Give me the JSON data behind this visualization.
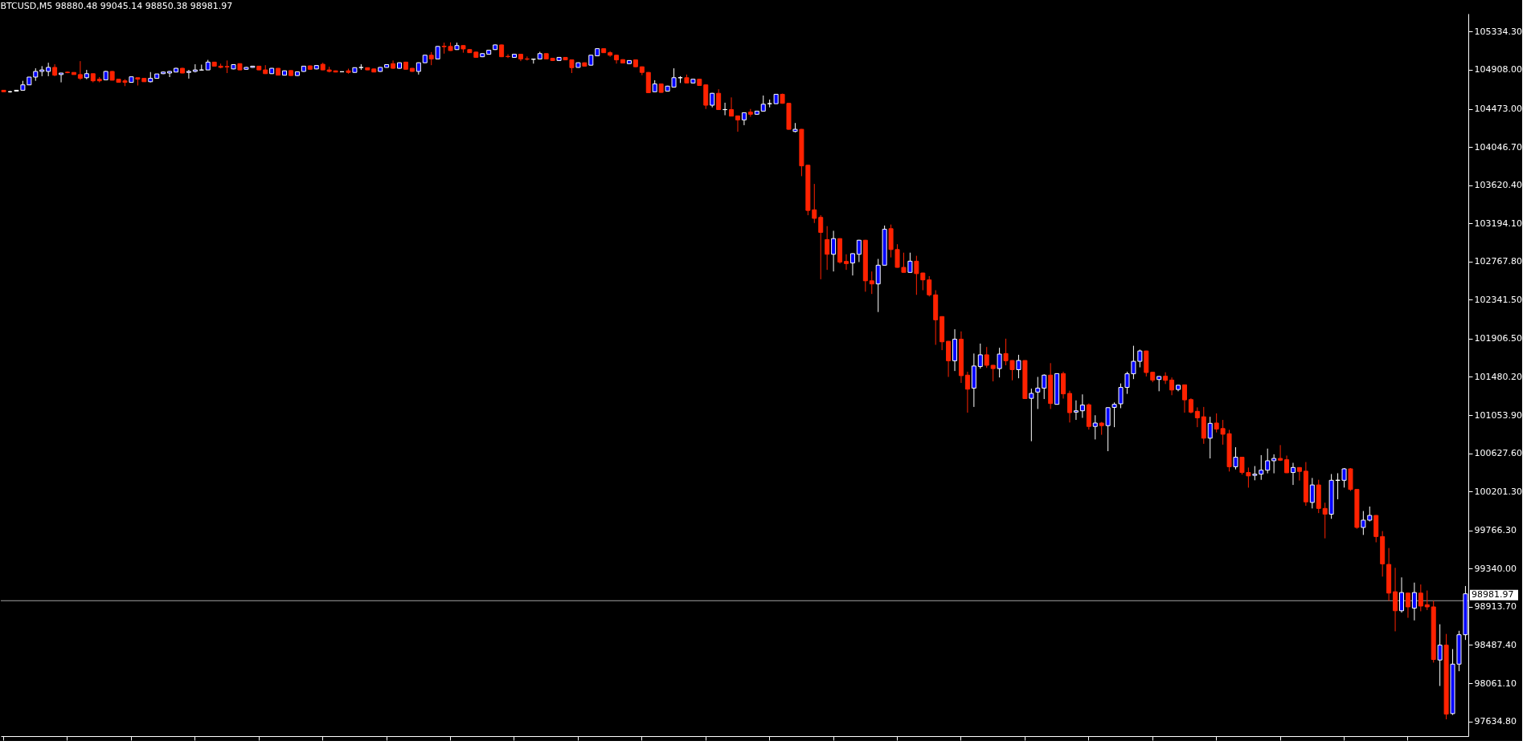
{
  "chart_data": {
    "type": "candlestick",
    "title": "BTCUSD,M5  98880.48 99045.14 98850.38 98981.97",
    "categories": [
      null,
      null,
      null,
      null,
      null,
      null,
      null,
      null,
      null,
      null,
      null,
      null,
      null,
      null,
      null,
      null,
      null,
      null,
      null,
      null,
      null,
      null,
      null,
      null,
      null,
      null,
      null,
      null,
      null,
      null,
      null,
      null,
      null,
      null,
      null,
      null,
      null,
      null,
      null,
      null,
      null,
      null,
      null,
      null,
      null,
      null,
      null,
      null,
      null,
      null,
      null,
      null,
      null,
      null,
      null,
      null,
      null,
      null,
      null,
      null,
      null,
      null,
      null,
      null,
      null,
      null,
      null,
      null,
      null,
      null,
      null,
      null,
      null,
      null,
      null,
      null,
      null,
      null,
      null,
      null,
      null,
      null,
      null,
      null,
      null,
      null,
      null,
      null,
      null,
      null,
      null,
      null,
      null,
      null,
      null,
      null,
      null,
      null,
      null,
      null,
      null,
      null,
      null,
      null,
      null,
      null,
      null,
      null,
      null,
      null,
      null,
      null,
      null,
      null,
      null,
      null,
      null,
      null,
      null,
      null,
      null,
      null,
      null,
      null,
      null,
      null,
      null,
      null,
      null,
      null,
      null,
      null,
      null,
      null,
      null,
      null,
      null,
      null,
      null,
      null,
      null,
      null,
      null,
      null,
      null,
      null,
      null,
      null,
      null,
      null,
      null,
      null,
      null,
      null,
      null,
      null,
      null,
      null,
      null,
      null,
      null,
      null,
      null,
      null,
      null,
      null,
      null,
      null,
      null,
      null,
      null,
      null,
      null,
      null,
      null,
      null,
      null,
      null,
      null,
      null,
      null,
      null,
      null,
      null,
      null,
      null,
      null,
      null,
      null,
      null,
      null,
      null,
      null,
      null,
      null,
      null,
      null,
      null,
      null,
      null,
      null,
      null,
      null,
      null,
      null,
      null,
      null,
      null,
      null,
      null,
      null,
      null,
      null,
      null,
      null,
      null,
      null,
      null,
      null,
      null,
      null,
      null,
      null,
      null,
      null,
      null,
      null,
      null,
      null,
      null
    ],
    "ohlc": [
      [
        104680,
        104680,
        104663,
        104663
      ],
      [
        104663,
        104673,
        104653,
        104663
      ],
      [
        104670,
        104683,
        104666,
        104680
      ],
      [
        104680,
        104785,
        104680,
        104740
      ],
      [
        104740,
        104827,
        104740,
        104827
      ],
      [
        104827,
        104925,
        104785,
        104890
      ],
      [
        104890,
        104949,
        104837,
        104907
      ],
      [
        104890,
        104987,
        104837,
        104935
      ],
      [
        104935,
        104970,
        104837,
        104848
      ],
      [
        104855,
        104872,
        104768,
        104872
      ],
      [
        104882,
        104890,
        104870,
        104876
      ],
      [
        104879,
        104879,
        104855,
        104855
      ],
      [
        104855,
        105005,
        104796,
        104813
      ],
      [
        104820,
        104907,
        104803,
        104865
      ],
      [
        104865,
        104865,
        104768,
        104785
      ],
      [
        104803,
        104827,
        104768,
        104785
      ],
      [
        104796,
        104895,
        104792,
        104890
      ],
      [
        104890,
        104895,
        104790,
        104792
      ],
      [
        104803,
        104803,
        104765,
        104768
      ],
      [
        104785,
        104803,
        104726,
        104768
      ],
      [
        104768,
        104830,
        104768,
        104830
      ],
      [
        104820,
        104820,
        104733,
        104803
      ],
      [
        104813,
        104813,
        104775,
        104775
      ],
      [
        104775,
        104883,
        104768,
        104813
      ],
      [
        104813,
        104862,
        104813,
        104862
      ],
      [
        104865,
        104890,
        104860,
        104883
      ],
      [
        104872,
        104895,
        104827,
        104890
      ],
      [
        104883,
        104930,
        104880,
        104925
      ],
      [
        104925,
        104930,
        104870,
        104872
      ],
      [
        104879,
        104907,
        104810,
        104890
      ],
      [
        104890,
        104970,
        104879,
        104907
      ],
      [
        104905,
        104966,
        104900,
        104907
      ],
      [
        104907,
        105019,
        104907,
        104994
      ],
      [
        104994,
        104998,
        104945,
        104949
      ],
      [
        104949,
        104977,
        104925,
        104935
      ],
      [
        104945,
        105012,
        104872,
        104940
      ],
      [
        104918,
        104970,
        104914,
        104966
      ],
      [
        104977,
        104980,
        104905,
        104907
      ],
      [
        104914,
        104940,
        104910,
        104935
      ],
      [
        104935,
        104952,
        104932,
        104949
      ],
      [
        104949,
        104952,
        104905,
        104907
      ],
      [
        104907,
        104960,
        104862,
        104865
      ],
      [
        104865,
        104928,
        104862,
        104925
      ],
      [
        104925,
        104928,
        104845,
        104848
      ],
      [
        104848,
        104900,
        104845,
        104897
      ],
      [
        104900,
        104903,
        104840,
        104844
      ],
      [
        104844,
        104890,
        104840,
        104886
      ],
      [
        104890,
        104952,
        104886,
        104949
      ],
      [
        104952,
        104956,
        104910,
        104914
      ],
      [
        104918,
        104960,
        104914,
        104956
      ],
      [
        104970,
        104987,
        104905,
        104907
      ],
      [
        104907,
        104942,
        104879,
        104890
      ],
      [
        104897,
        104900,
        104880,
        104883
      ],
      [
        104886,
        104890,
        104882,
        104887
      ],
      [
        104897,
        104921,
        104865,
        104879
      ],
      [
        104879,
        104935,
        104876,
        104932
      ],
      [
        104933,
        104970,
        104907,
        104935
      ],
      [
        104932,
        104935,
        104905,
        104907
      ],
      [
        104918,
        104921,
        104880,
        104883
      ],
      [
        104890,
        104938,
        104886,
        104935
      ],
      [
        104935,
        104970,
        104932,
        104966
      ],
      [
        104977,
        105012,
        104921,
        104925
      ],
      [
        104925,
        104990,
        104921,
        104987
      ],
      [
        104994,
        104998,
        104910,
        104914
      ],
      [
        104925,
        104928,
        104886,
        104890
      ],
      [
        104890,
        104990,
        104855,
        104987
      ],
      [
        104987,
        105075,
        104984,
        105071
      ],
      [
        105071,
        105106,
        104960,
        105029
      ],
      [
        105029,
        105172,
        105026,
        105169
      ],
      [
        105172,
        105211,
        105089,
        105166
      ],
      [
        105169,
        105214,
        105120,
        105123
      ],
      [
        105134,
        105211,
        105130,
        105179
      ],
      [
        105179,
        105182,
        105099,
        105141
      ],
      [
        105134,
        105137,
        105096,
        105099
      ],
      [
        105106,
        105110,
        105044,
        105047
      ],
      [
        105054,
        105092,
        105050,
        105089
      ],
      [
        105082,
        105130,
        105078,
        105127
      ],
      [
        105134,
        105190,
        105130,
        105186
      ],
      [
        105186,
        105190,
        105050,
        105054
      ],
      [
        105058,
        105082,
        105040,
        105055
      ],
      [
        105047,
        105085,
        105044,
        105082
      ],
      [
        105082,
        105085,
        105005,
        105029
      ],
      [
        105030,
        105057,
        105012,
        105027
      ],
      [
        105026,
        105030,
        104977,
        105027
      ],
      [
        105029,
        105109,
        105026,
        105089
      ],
      [
        105089,
        105092,
        105026,
        105029
      ],
      [
        105036,
        105040,
        105009,
        105012
      ],
      [
        105012,
        105050,
        105009,
        105047
      ],
      [
        105047,
        105050,
        105015,
        105019
      ],
      [
        105019,
        105022,
        104872,
        104932
      ],
      [
        104935,
        104990,
        104932,
        104987
      ],
      [
        104987,
        104990,
        104945,
        104949
      ],
      [
        104960,
        105075,
        104956,
        105071
      ],
      [
        105064,
        105148,
        105060,
        105144
      ],
      [
        105144,
        105148,
        105096,
        105099
      ],
      [
        105099,
        105116,
        105054,
        105071
      ],
      [
        105071,
        105075,
        104977,
        105019
      ],
      [
        105022,
        105026,
        104980,
        104984
      ],
      [
        104977,
        105015,
        104973,
        105012
      ],
      [
        105019,
        105022,
        104938,
        104942
      ],
      [
        104942,
        104945,
        104848,
        104879
      ],
      [
        104879,
        104883,
        104650,
        104653
      ],
      [
        104663,
        104792,
        104660,
        104750
      ],
      [
        104750,
        104754,
        104653,
        104656
      ],
      [
        104670,
        104730,
        104666,
        104726
      ],
      [
        104715,
        104925,
        104712,
        104820
      ],
      [
        104819,
        104837,
        104761,
        104821
      ],
      [
        104820,
        104855,
        104758,
        104761
      ],
      [
        104761,
        104806,
        104758,
        104803
      ],
      [
        104803,
        104806,
        104730,
        104733
      ],
      [
        104740,
        104743,
        104471,
        104513
      ],
      [
        104513,
        104650,
        104489,
        104646
      ],
      [
        104646,
        104691,
        104460,
        104464
      ],
      [
        104463,
        104541,
        104401,
        104465
      ],
      [
        104464,
        104600,
        104388,
        104391
      ],
      [
        104394,
        104397,
        104217,
        104349
      ],
      [
        104349,
        104432,
        104290,
        104429
      ],
      [
        104436,
        104471,
        104384,
        104412
      ],
      [
        104412,
        104450,
        104408,
        104447
      ],
      [
        104447,
        104621,
        104444,
        104524
      ],
      [
        104529,
        104576,
        104489,
        104531
      ],
      [
        104530,
        104638,
        104527,
        104635
      ],
      [
        104635,
        104642,
        104530,
        104534
      ],
      [
        104534,
        104537,
        104240,
        104244
      ],
      [
        104220,
        104314,
        104210,
        104244
      ],
      [
        104244,
        104247,
        103721,
        103836
      ],
      [
        103843,
        103846,
        103285,
        103338
      ],
      [
        103345,
        103634,
        103198,
        103250
      ],
      [
        103261,
        103285,
        102570,
        103093
      ],
      [
        103013,
        103163,
        102675,
        102849
      ],
      [
        102849,
        103111,
        102657,
        103024
      ],
      [
        103024,
        103027,
        102745,
        102762
      ],
      [
        102769,
        102849,
        102675,
        102745
      ],
      [
        102752,
        102860,
        102612,
        102856
      ],
      [
        102849,
        103010,
        102762,
        103006
      ],
      [
        103006,
        103010,
        102431,
        102553
      ],
      [
        102553,
        102657,
        102406,
        102518
      ],
      [
        102518,
        102797,
        102204,
        102727
      ],
      [
        102727,
        103170,
        102724,
        103128
      ],
      [
        103135,
        103181,
        102814,
        102902
      ],
      [
        102902,
        102961,
        102700,
        102703
      ],
      [
        102703,
        102867,
        102644,
        102647
      ],
      [
        102647,
        102867,
        102644,
        102772
      ],
      [
        102772,
        102832,
        102396,
        102633
      ],
      [
        102640,
        102643,
        102448,
        102563
      ],
      [
        102563,
        102605,
        102378,
        102396
      ],
      [
        102396,
        102448,
        101838,
        102117
      ],
      [
        102154,
        102157,
        101779,
        101872
      ],
      [
        101878,
        101881,
        101480,
        101660
      ],
      [
        101660,
        102012,
        101546,
        101901
      ],
      [
        101901,
        101988,
        101413,
        101494
      ],
      [
        101500,
        101538,
        101081,
        101343
      ],
      [
        101355,
        101741,
        101145,
        101602
      ],
      [
        101596,
        101852,
        101573,
        101727
      ],
      [
        101727,
        101814,
        101581,
        101610
      ],
      [
        101610,
        101613,
        101430,
        101573
      ],
      [
        101573,
        101805,
        101474,
        101735
      ],
      [
        101741,
        101907,
        101610,
        101660
      ],
      [
        101663,
        101666,
        101442,
        101561
      ],
      [
        101561,
        101727,
        101465,
        101663
      ],
      [
        101663,
        101666,
        101235,
        101238
      ],
      [
        101241,
        101349,
        100762,
        101296
      ],
      [
        101311,
        101480,
        101122,
        101355
      ],
      [
        101355,
        101509,
        101233,
        101500
      ],
      [
        101500,
        101634,
        101122,
        101183
      ],
      [
        101174,
        101520,
        101171,
        101517
      ],
      [
        101517,
        101538,
        101238,
        101291
      ],
      [
        101296,
        101326,
        100971,
        101081
      ],
      [
        101087,
        101218,
        101000,
        101102
      ],
      [
        101102,
        101285,
        101023,
        101166
      ],
      [
        101169,
        101183,
        100892,
        100927
      ],
      [
        100927,
        101052,
        100782,
        100965
      ],
      [
        100965,
        100977,
        100834,
        100936
      ],
      [
        100936,
        101140,
        100651,
        101137
      ],
      [
        101140,
        101195,
        100919,
        101174
      ],
      [
        101180,
        101407,
        101131,
        101363
      ],
      [
        101363,
        101538,
        101291,
        101515
      ],
      [
        101515,
        101828,
        101456,
        101654
      ],
      [
        101654,
        101785,
        101587,
        101770
      ],
      [
        101770,
        101773,
        101485,
        101529
      ],
      [
        101532,
        101535,
        101421,
        101445
      ],
      [
        101451,
        101488,
        101320,
        101485
      ],
      [
        101488,
        101532,
        101401,
        101442
      ],
      [
        101445,
        101474,
        101276,
        101334
      ],
      [
        101340,
        101390,
        101320,
        101387
      ],
      [
        101392,
        101395,
        101081,
        101224
      ],
      [
        101227,
        101241,
        101073,
        101087
      ],
      [
        101096,
        101140,
        100919,
        101023
      ],
      [
        101035,
        101145,
        100733,
        100796
      ],
      [
        100796,
        101035,
        100570,
        100962
      ],
      [
        100965,
        101073,
        100860,
        100898
      ],
      [
        100904,
        101000,
        100724,
        100840
      ],
      [
        100846,
        100889,
        100424,
        100477
      ],
      [
        100477,
        100695,
        100448,
        100584
      ],
      [
        100584,
        100587,
        100390,
        100413
      ],
      [
        100413,
        100468,
        100244,
        100375
      ],
      [
        100381,
        100485,
        100326,
        100395
      ],
      [
        100395,
        100607,
        100331,
        100439
      ],
      [
        100439,
        100680,
        100404,
        100544
      ],
      [
        100544,
        100616,
        100404,
        100570
      ],
      [
        100570,
        100719,
        100541,
        100550
      ],
      [
        100556,
        100602,
        100407,
        100410
      ],
      [
        100413,
        100521,
        100274,
        100469
      ],
      [
        100469,
        100472,
        100323,
        100425
      ],
      [
        100428,
        100530,
        100041,
        100085
      ],
      [
        100079,
        100352,
        100012,
        100274
      ],
      [
        100274,
        100332,
        99960,
        100012
      ],
      [
        100012,
        100076,
        99678,
        99948
      ],
      [
        99948,
        100396,
        99896,
        100326
      ],
      [
        100324,
        100405,
        100114,
        100328
      ],
      [
        100326,
        100463,
        100245,
        100454
      ],
      [
        100454,
        100463,
        100207,
        100224
      ],
      [
        100224,
        100227,
        99785,
        99800
      ],
      [
        99800,
        99983,
        99716,
        99881
      ],
      [
        99881,
        100033,
        99867,
        99934
      ],
      [
        99934,
        99937,
        99634,
        99698
      ],
      [
        99698,
        99759,
        99251,
        99393
      ],
      [
        99387,
        99570,
        98980,
        99067
      ],
      [
        99082,
        99349,
        98640,
        98870
      ],
      [
        98870,
        99242,
        98849,
        99073
      ],
      [
        99067,
        99070,
        98791,
        98913
      ],
      [
        98899,
        99184,
        98762,
        99073
      ],
      [
        99067,
        99163,
        98864,
        98922
      ],
      [
        98937,
        99096,
        98878,
        98913
      ],
      [
        98913,
        98980,
        98291,
        98326
      ],
      [
        98320,
        98719,
        98030,
        98486
      ],
      [
        98486,
        98611,
        97658,
        97716
      ],
      [
        97722,
        98442,
        97707,
        98274
      ],
      [
        98274,
        98646,
        98195,
        98602
      ],
      [
        98602,
        99146,
        98544,
        99059
      ]
    ],
    "colors": [
      "#ff2200",
      "#ffffff",
      "#0000ff",
      "#0000ff",
      "#0000ff",
      "#0000ff",
      "#0000ff",
      "#0000ff",
      "#ff2200",
      "#0000ff",
      "#ff2200",
      "#ff2200",
      "#ff2200",
      "#0000ff",
      "#ff2200",
      "#ff2200",
      "#0000ff",
      "#ff2200",
      "#ff2200",
      "#ff2200",
      "#0000ff",
      "#ff2200",
      "#ff2200",
      "#0000ff",
      "#0000ff",
      "#0000ff",
      "#0000ff",
      "#0000ff",
      "#ff2200",
      "#0000ff",
      "#0000ff",
      "#0000ff",
      "#0000ff",
      "#ff2200",
      "#ff2200",
      "#ff2200",
      "#0000ff",
      "#ff2200",
      "#0000ff",
      "#0000ff",
      "#ff2200",
      "#ff2200",
      "#0000ff",
      "#ff2200",
      "#0000ff",
      "#ff2200",
      "#0000ff",
      "#0000ff",
      "#ff2200",
      "#0000ff",
      "#ff2200",
      "#ff2200",
      "#ff2200",
      "#0000ff",
      "#ff2200",
      "#0000ff",
      "#0000ff",
      "#ff2200",
      "#ff2200",
      "#0000ff",
      "#0000ff",
      "#ff2200",
      "#0000ff",
      "#ff2200",
      "#ff2200",
      "#0000ff",
      "#0000ff",
      "#ff2200",
      "#0000ff",
      "#ff2200",
      "#ff2200",
      "#0000ff",
      "#ff2200",
      "#ff2200",
      "#ff2200",
      "#0000ff",
      "#0000ff",
      "#0000ff",
      "#ff2200",
      "#ff2200",
      "#0000ff",
      "#ff2200",
      "#ff2200",
      "#0000ff",
      "#0000ff",
      "#ff2200",
      "#ff2200",
      "#0000ff",
      "#ff2200",
      "#ff2200",
      "#0000ff",
      "#ff2200",
      "#0000ff",
      "#0000ff",
      "#ff2200",
      "#ff2200",
      "#ff2200",
      "#ff2200",
      "#0000ff",
      "#ff2200",
      "#ff2200",
      "#ff2200",
      "#0000ff",
      "#ff2200",
      "#0000ff",
      "#0000ff",
      "#0000ff",
      "#ff2200",
      "#0000ff",
      "#ff2200",
      "#ff2200",
      "#0000ff",
      "#ff2200",
      "#0000ff",
      "#ff2200",
      "#ff2200",
      "#0000ff",
      "#ff2200",
      "#0000ff",
      "#0000ff",
      "#0000ff",
      "#0000ff",
      "#ff2200",
      "#ff2200",
      "#0000ff",
      "#ff2200",
      "#ff2200",
      "#ff2200",
      "#ff2200",
      "#ff2200",
      "#0000ff",
      "#ff2200",
      "#ff2200",
      "#0000ff",
      "#0000ff",
      "#ff2200",
      "#ff2200",
      "#0000ff",
      "#0000ff",
      "#ff2200",
      "#ff2200",
      "#ff2200",
      "#0000ff",
      "#ff2200",
      "#ff2200",
      "#ff2200",
      "#ff2200",
      "#ff2200",
      "#ff2200",
      "#0000ff",
      "#ff2200",
      "#ff2200",
      "#0000ff",
      "#0000ff",
      "#ff2200",
      "#ff2200",
      "#0000ff",
      "#ff2200",
      "#ff2200",
      "#0000ff",
      "#ff2200",
      "#0000ff",
      "#0000ff",
      "#0000ff",
      "#ff2200",
      "#0000ff",
      "#ff2200",
      "#ff2200",
      "#0000ff",
      "#0000ff",
      "#ff2200",
      "#0000ff",
      "#ff2200",
      "#0000ff",
      "#0000ff",
      "#0000ff",
      "#0000ff",
      "#0000ff",
      "#0000ff",
      "#ff2200",
      "#ff2200",
      "#0000ff",
      "#ff2200",
      "#ff2200",
      "#0000ff",
      "#ff2200",
      "#ff2200",
      "#ff2200",
      "#ff2200",
      "#0000ff",
      "#ff2200",
      "#ff2200",
      "#ff2200",
      "#0000ff",
      "#ff2200",
      "#ff2200",
      "#0000ff",
      "#0000ff",
      "#0000ff",
      "#0000ff",
      "#ff2200",
      "#ff2200",
      "#0000ff",
      "#ff2200",
      "#ff2200",
      "#0000ff",
      "#ff2200",
      "#ff2200",
      "#0000ff",
      "#0000ff",
      "#0000ff",
      "#ff2200",
      "#ff2200",
      "#0000ff",
      "#0000ff",
      "#ff2200",
      "#ff2200",
      "#ff2200",
      "#ff2200",
      "#0000ff",
      "#ff2200",
      "#0000ff",
      "#ff2200",
      "#ff2200",
      "#ff2200",
      "#0000ff",
      "#ff2200",
      "#0000ff",
      "#0000ff",
      "#0000ff"
    ],
    "ylim": [
      97470,
      105535
    ],
    "yticks": [
      {
        "value": 105334.3,
        "label": "105334.30"
      },
      {
        "value": 104908,
        "label": "104908.00"
      },
      {
        "value": 104473,
        "label": "104473.00"
      },
      {
        "value": 104046.7,
        "label": "104046.70"
      },
      {
        "value": 103620.4,
        "label": "103620.40"
      },
      {
        "value": 103194.1,
        "label": "103194.10"
      },
      {
        "value": 102767.8,
        "label": "102767.80"
      },
      {
        "value": 102341.5,
        "label": "102341.50"
      },
      {
        "value": 101906.5,
        "label": "101906.50"
      },
      {
        "value": 101480.2,
        "label": "101480.20"
      },
      {
        "value": 101053.9,
        "label": "101053.90"
      },
      {
        "value": 100627.6,
        "label": "100627.60"
      },
      {
        "value": 100201.3,
        "label": "100201.30"
      },
      {
        "value": 99766.3,
        "label": "99766.30"
      },
      {
        "value": 99340,
        "label": "99340.00"
      },
      {
        "value": 98913.7,
        "label": "98913.70"
      },
      {
        "value": 98487.4,
        "label": "98487.40"
      },
      {
        "value": 98061.1,
        "label": "98061.10"
      },
      {
        "value": 97634.8,
        "label": "97634.80"
      }
    ],
    "ref_lines": [
      {
        "axis": "y",
        "value": 98981.97,
        "label": "98981.97",
        "color": "#a0a0a0"
      }
    ],
    "tick_labels": "y"
  }
}
